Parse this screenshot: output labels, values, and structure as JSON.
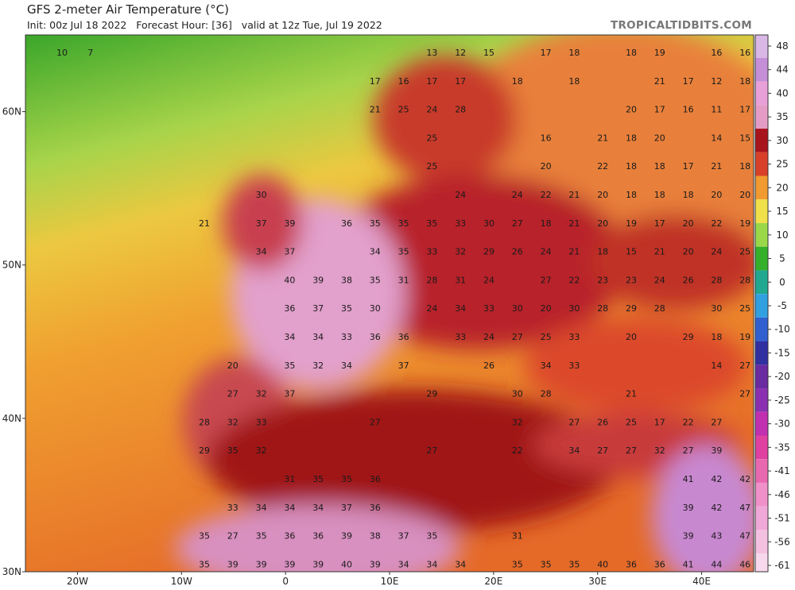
{
  "header": {
    "title": "GFS 2-meter Air Temperature (°C)",
    "subtitle": "Init: 00z Jul 18 2022   Forecast Hour: [36]   valid at 12z Tue, Jul 19 2022",
    "credit": "TROPICALTIDBITS.COM"
  },
  "map": {
    "xlim": [
      -25,
      45
    ],
    "ylim": [
      30,
      65
    ],
    "xticks": [
      {
        "value": -20,
        "label": "20W"
      },
      {
        "value": -10,
        "label": "10W"
      },
      0,
      {
        "value": 10,
        "label": "10E"
      },
      {
        "value": 20,
        "label": "20E"
      },
      {
        "value": 30,
        "label": "30E"
      },
      {
        "value": 40,
        "label": "40E"
      }
    ],
    "yticks": [
      {
        "value": 30,
        "label": "30N"
      },
      {
        "value": 40,
        "label": "40N"
      },
      {
        "value": 50,
        "label": "50N"
      },
      {
        "value": 60,
        "label": "60N"
      }
    ],
    "temperature_labels": [
      [
        10,
        7,
        null,
        null,
        null,
        null,
        null,
        null,
        null,
        null,
        null,
        null,
        null,
        13,
        12,
        15,
        null,
        17,
        18,
        null,
        18,
        19,
        null,
        16,
        16
      ],
      [
        null,
        null,
        null,
        null,
        null,
        null,
        null,
        null,
        null,
        null,
        null,
        17,
        16,
        17,
        17,
        null,
        18,
        null,
        18,
        null,
        null,
        21,
        17,
        12,
        18
      ],
      [
        null,
        null,
        null,
        null,
        null,
        null,
        null,
        null,
        null,
        null,
        null,
        21,
        25,
        24,
        28,
        null,
        null,
        null,
        null,
        null,
        20,
        17,
        16,
        11,
        17
      ],
      [
        null,
        null,
        null,
        null,
        null,
        null,
        null,
        null,
        null,
        null,
        null,
        null,
        null,
        25,
        null,
        null,
        null,
        16,
        null,
        21,
        18,
        20,
        null,
        14,
        15
      ],
      [
        null,
        null,
        null,
        null,
        null,
        null,
        null,
        null,
        null,
        null,
        null,
        null,
        null,
        25,
        null,
        null,
        null,
        20,
        null,
        22,
        18,
        18,
        17,
        21,
        18
      ],
      [
        null,
        null,
        null,
        null,
        null,
        null,
        null,
        30,
        null,
        null,
        null,
        null,
        null,
        null,
        24,
        null,
        24,
        22,
        21,
        20,
        18,
        18,
        18,
        20,
        20
      ],
      [
        null,
        null,
        null,
        null,
        null,
        21,
        null,
        37,
        39,
        null,
        36,
        35,
        35,
        35,
        33,
        30,
        27,
        18,
        21,
        20,
        19,
        17,
        20,
        22,
        19
      ],
      [
        null,
        null,
        null,
        null,
        null,
        null,
        null,
        34,
        37,
        null,
        null,
        34,
        35,
        33,
        32,
        29,
        26,
        24,
        21,
        18,
        15,
        21,
        20,
        24,
        25
      ],
      [
        null,
        null,
        null,
        null,
        null,
        null,
        null,
        null,
        40,
        39,
        38,
        35,
        31,
        28,
        31,
        24,
        null,
        27,
        22,
        23,
        23,
        24,
        26,
        28,
        28
      ],
      [
        null,
        null,
        null,
        null,
        null,
        null,
        null,
        null,
        36,
        37,
        35,
        30,
        null,
        24,
        34,
        33,
        30,
        20,
        30,
        28,
        29,
        28,
        null,
        30,
        25
      ],
      [
        null,
        null,
        null,
        null,
        null,
        null,
        null,
        null,
        34,
        34,
        33,
        36,
        36,
        null,
        33,
        24,
        27,
        25,
        33,
        null,
        20,
        null,
        29,
        18,
        19
      ],
      [
        null,
        null,
        null,
        null,
        null,
        null,
        20,
        null,
        35,
        32,
        34,
        null,
        37,
        null,
        null,
        26,
        null,
        34,
        33,
        null,
        null,
        null,
        null,
        14,
        27
      ],
      [
        null,
        null,
        null,
        null,
        null,
        null,
        27,
        32,
        37,
        null,
        null,
        null,
        null,
        29,
        null,
        null,
        30,
        28,
        null,
        null,
        21,
        null,
        null,
        null,
        27
      ],
      [
        null,
        null,
        null,
        null,
        null,
        28,
        32,
        33,
        null,
        null,
        null,
        27,
        null,
        null,
        null,
        null,
        32,
        null,
        27,
        26,
        25,
        17,
        22,
        27,
        null
      ],
      [
        null,
        null,
        null,
        null,
        null,
        29,
        35,
        32,
        null,
        null,
        null,
        null,
        null,
        27,
        null,
        null,
        22,
        null,
        34,
        27,
        27,
        32,
        27,
        39,
        null
      ],
      [
        null,
        null,
        null,
        null,
        null,
        null,
        null,
        null,
        31,
        35,
        35,
        36,
        null,
        null,
        null,
        null,
        null,
        null,
        null,
        null,
        null,
        null,
        41,
        42,
        42
      ],
      [
        null,
        null,
        null,
        null,
        null,
        null,
        33,
        34,
        34,
        34,
        37,
        36,
        null,
        null,
        null,
        null,
        null,
        null,
        null,
        null,
        null,
        null,
        39,
        42,
        47
      ],
      [
        null,
        null,
        null,
        null,
        null,
        35,
        27,
        35,
        36,
        36,
        39,
        38,
        37,
        35,
        null,
        null,
        31,
        null,
        null,
        null,
        null,
        null,
        39,
        43,
        47
      ],
      [
        null,
        null,
        null,
        null,
        null,
        35,
        39,
        39,
        39,
        39,
        40,
        39,
        34,
        34,
        34,
        null,
        35,
        35,
        35,
        40,
        36,
        36,
        41,
        44,
        46
      ]
    ]
  },
  "colorbar": {
    "ticks": [
      48,
      44,
      40,
      35,
      30,
      25,
      20,
      15,
      10,
      5,
      0,
      -5,
      -10,
      -15,
      -20,
      -25,
      -30,
      -35,
      -41,
      -46,
      -51,
      -56,
      -61
    ],
    "colors": [
      "#d9b7e6",
      "#c58fd8",
      "#e8a0d8",
      "#e49cc4",
      "#a8141c",
      "#d8402a",
      "#f09a30",
      "#f0e04a",
      "#9ad84a",
      "#34b02a",
      "#20a890",
      "#30a0e0",
      "#3060d0",
      "#3030a0",
      "#6a2aa0",
      "#8a30b0",
      "#c030b0",
      "#e040a0",
      "#e868b0",
      "#f090c8",
      "#f0a8d8",
      "#f4c0e0",
      "#f8d8ec"
    ]
  }
}
